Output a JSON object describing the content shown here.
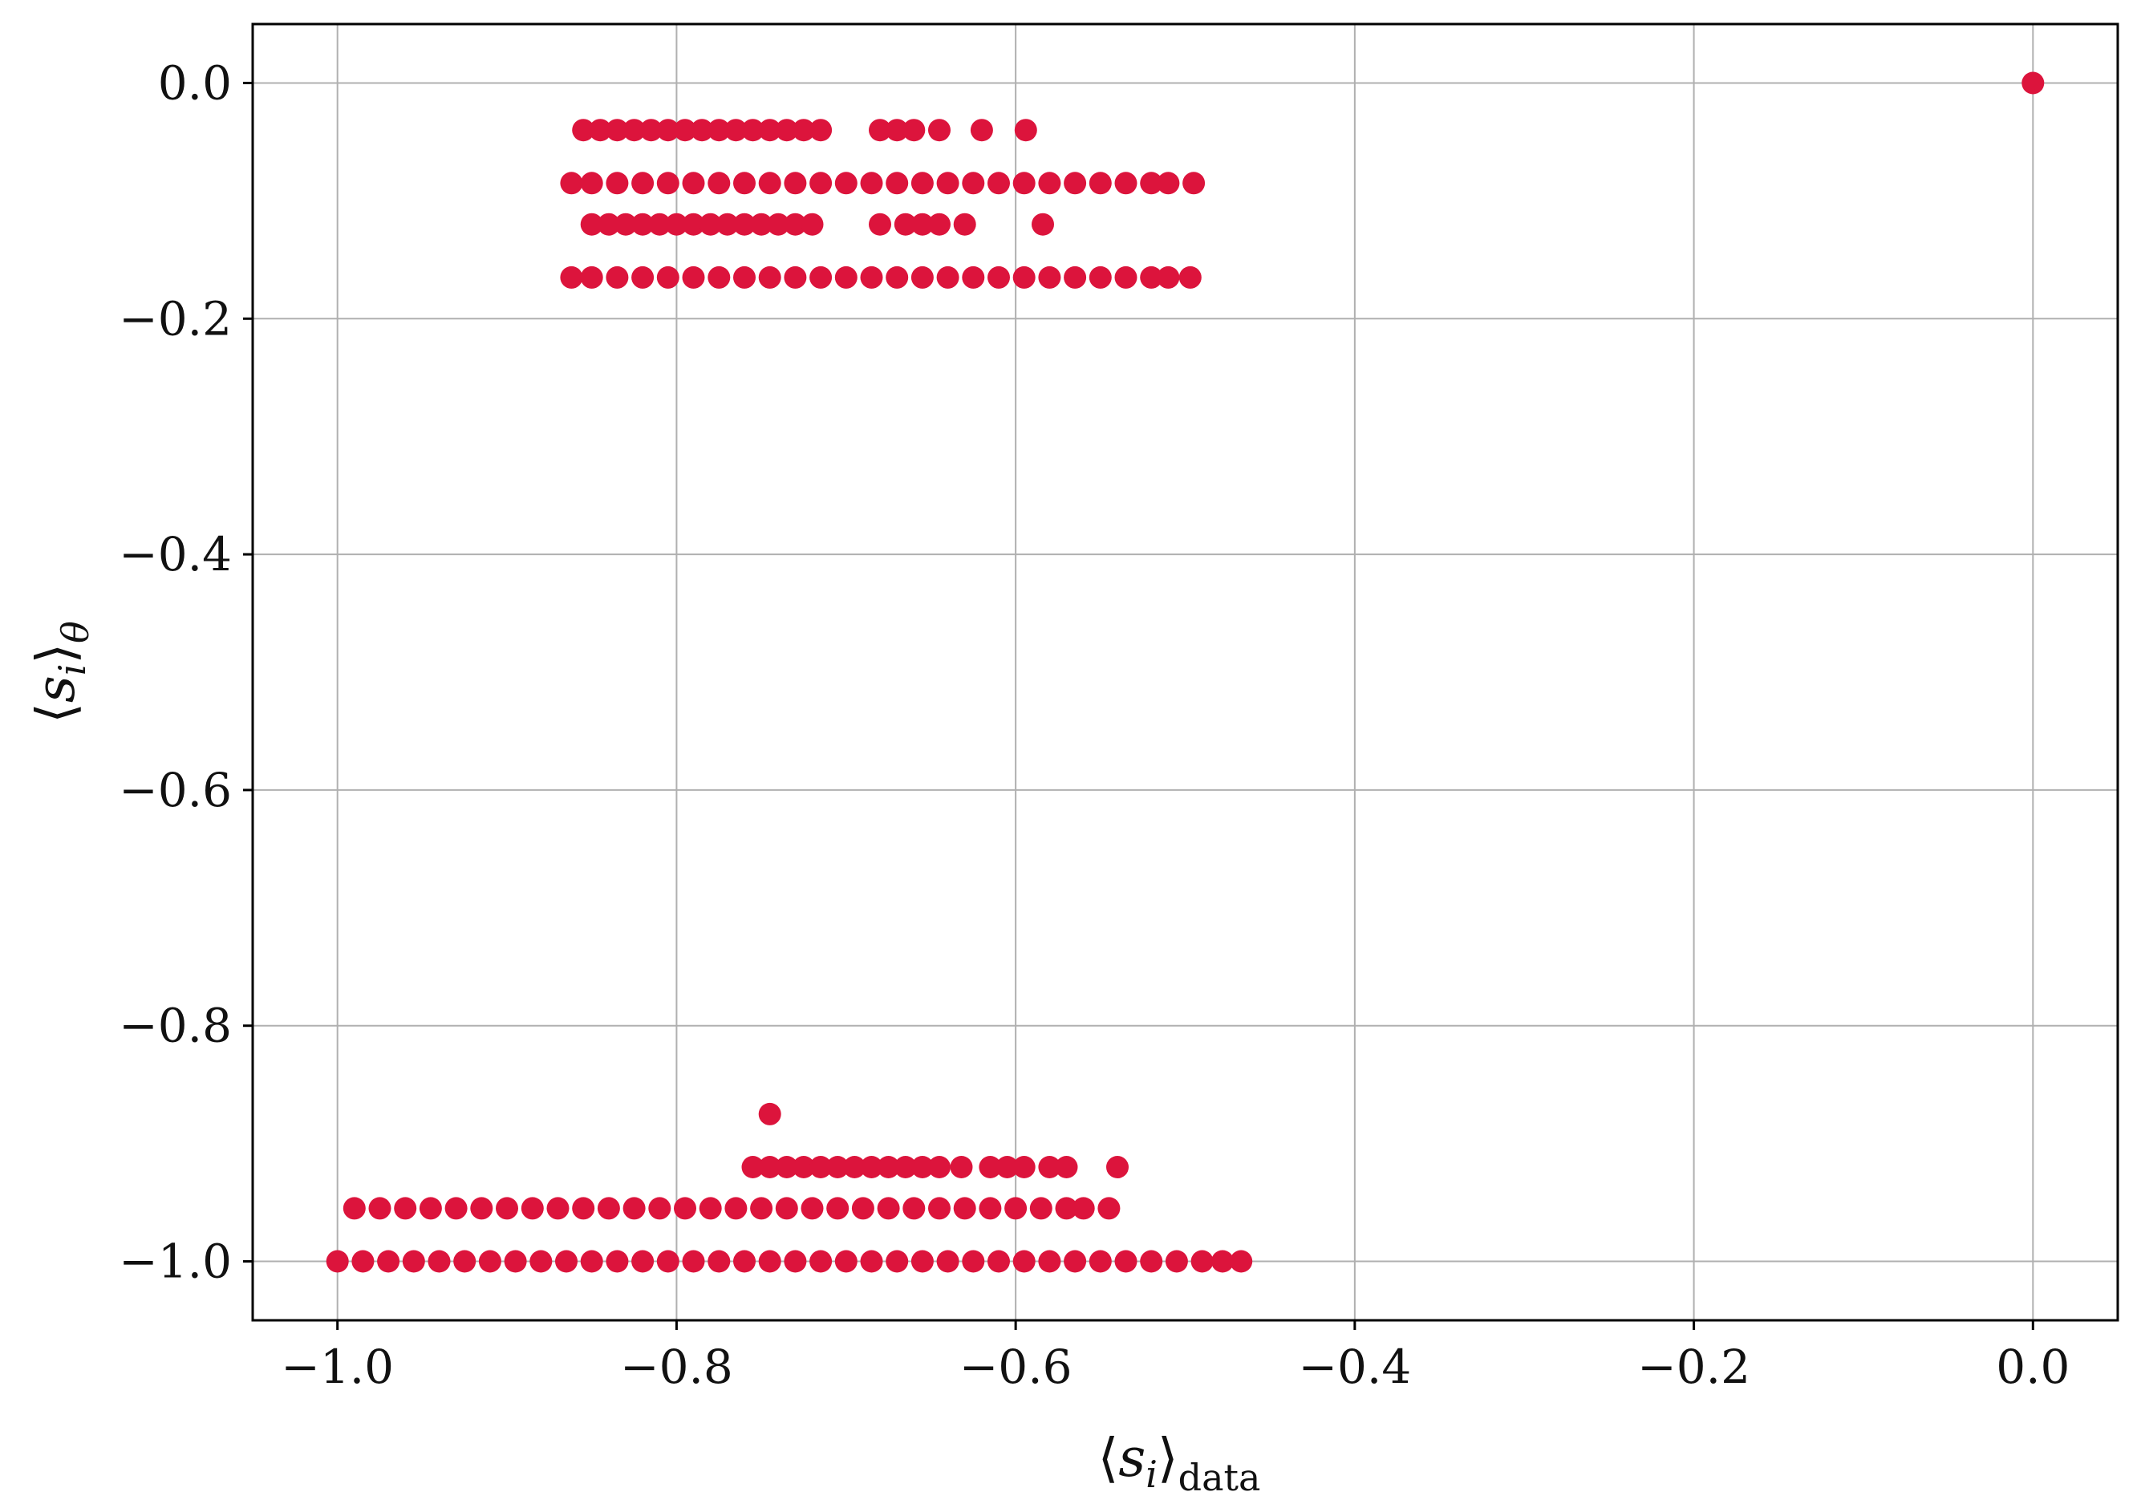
{
  "chart_data": {
    "type": "scatter",
    "xlabel_parts": {
      "open": "⟨",
      "sym": "s",
      "idx": "i",
      "close": "⟩",
      "sub": "data"
    },
    "ylabel_parts": {
      "open": "⟨",
      "sym": "s",
      "idx": "i",
      "close": "⟩",
      "sub": "θ"
    },
    "xlim": [
      -1.05,
      0.05
    ],
    "ylim": [
      -1.05,
      0.05
    ],
    "x_ticks": [
      -1.0,
      -0.8,
      -0.6,
      -0.4,
      -0.2,
      0.0
    ],
    "x_tick_labels": [
      "−1.0",
      "−0.8",
      "−0.6",
      "−0.4",
      "−0.2",
      "0.0"
    ],
    "y_ticks": [
      0.0,
      -0.2,
      -0.4,
      -0.6,
      -0.8,
      -1.0
    ],
    "y_tick_labels": [
      "0.0",
      "−0.2",
      "−0.4",
      "−0.6",
      "−0.8",
      "−1.0"
    ],
    "grid": true,
    "marker_color": "#dc143c",
    "series": [
      {
        "points": [
          [
            0.0,
            0.0
          ],
          [
            -0.855,
            -0.04
          ],
          [
            -0.845,
            -0.04
          ],
          [
            -0.835,
            -0.04
          ],
          [
            -0.825,
            -0.04
          ],
          [
            -0.815,
            -0.04
          ],
          [
            -0.805,
            -0.04
          ],
          [
            -0.795,
            -0.04
          ],
          [
            -0.785,
            -0.04
          ],
          [
            -0.775,
            -0.04
          ],
          [
            -0.765,
            -0.04
          ],
          [
            -0.755,
            -0.04
          ],
          [
            -0.745,
            -0.04
          ],
          [
            -0.735,
            -0.04
          ],
          [
            -0.725,
            -0.04
          ],
          [
            -0.715,
            -0.04
          ],
          [
            -0.68,
            -0.04
          ],
          [
            -0.67,
            -0.04
          ],
          [
            -0.66,
            -0.04
          ],
          [
            -0.645,
            -0.04
          ],
          [
            -0.62,
            -0.04
          ],
          [
            -0.594,
            -0.04
          ],
          [
            -0.862,
            -0.085
          ],
          [
            -0.85,
            -0.085
          ],
          [
            -0.835,
            -0.085
          ],
          [
            -0.82,
            -0.085
          ],
          [
            -0.805,
            -0.085
          ],
          [
            -0.79,
            -0.085
          ],
          [
            -0.775,
            -0.085
          ],
          [
            -0.76,
            -0.085
          ],
          [
            -0.745,
            -0.085
          ],
          [
            -0.73,
            -0.085
          ],
          [
            -0.715,
            -0.085
          ],
          [
            -0.7,
            -0.085
          ],
          [
            -0.685,
            -0.085
          ],
          [
            -0.67,
            -0.085
          ],
          [
            -0.655,
            -0.085
          ],
          [
            -0.64,
            -0.085
          ],
          [
            -0.625,
            -0.085
          ],
          [
            -0.61,
            -0.085
          ],
          [
            -0.595,
            -0.085
          ],
          [
            -0.58,
            -0.085
          ],
          [
            -0.565,
            -0.085
          ],
          [
            -0.55,
            -0.085
          ],
          [
            -0.535,
            -0.085
          ],
          [
            -0.52,
            -0.085
          ],
          [
            -0.51,
            -0.085
          ],
          [
            -0.495,
            -0.085
          ],
          [
            -0.85,
            -0.12
          ],
          [
            -0.84,
            -0.12
          ],
          [
            -0.83,
            -0.12
          ],
          [
            -0.82,
            -0.12
          ],
          [
            -0.81,
            -0.12
          ],
          [
            -0.8,
            -0.12
          ],
          [
            -0.79,
            -0.12
          ],
          [
            -0.78,
            -0.12
          ],
          [
            -0.77,
            -0.12
          ],
          [
            -0.76,
            -0.12
          ],
          [
            -0.75,
            -0.12
          ],
          [
            -0.74,
            -0.12
          ],
          [
            -0.73,
            -0.12
          ],
          [
            -0.72,
            -0.12
          ],
          [
            -0.68,
            -0.12
          ],
          [
            -0.665,
            -0.12
          ],
          [
            -0.655,
            -0.12
          ],
          [
            -0.645,
            -0.12
          ],
          [
            -0.63,
            -0.12
          ],
          [
            -0.584,
            -0.12
          ],
          [
            -0.862,
            -0.165
          ],
          [
            -0.85,
            -0.165
          ],
          [
            -0.835,
            -0.165
          ],
          [
            -0.82,
            -0.165
          ],
          [
            -0.805,
            -0.165
          ],
          [
            -0.79,
            -0.165
          ],
          [
            -0.775,
            -0.165
          ],
          [
            -0.76,
            -0.165
          ],
          [
            -0.745,
            -0.165
          ],
          [
            -0.73,
            -0.165
          ],
          [
            -0.715,
            -0.165
          ],
          [
            -0.7,
            -0.165
          ],
          [
            -0.685,
            -0.165
          ],
          [
            -0.67,
            -0.165
          ],
          [
            -0.655,
            -0.165
          ],
          [
            -0.64,
            -0.165
          ],
          [
            -0.625,
            -0.165
          ],
          [
            -0.61,
            -0.165
          ],
          [
            -0.595,
            -0.165
          ],
          [
            -0.58,
            -0.165
          ],
          [
            -0.565,
            -0.165
          ],
          [
            -0.55,
            -0.165
          ],
          [
            -0.535,
            -0.165
          ],
          [
            -0.52,
            -0.165
          ],
          [
            -0.51,
            -0.165
          ],
          [
            -0.497,
            -0.165
          ],
          [
            -0.745,
            -0.875
          ],
          [
            -0.755,
            -0.92
          ],
          [
            -0.745,
            -0.92
          ],
          [
            -0.735,
            -0.92
          ],
          [
            -0.725,
            -0.92
          ],
          [
            -0.715,
            -0.92
          ],
          [
            -0.705,
            -0.92
          ],
          [
            -0.695,
            -0.92
          ],
          [
            -0.685,
            -0.92
          ],
          [
            -0.675,
            -0.92
          ],
          [
            -0.665,
            -0.92
          ],
          [
            -0.655,
            -0.92
          ],
          [
            -0.645,
            -0.92
          ],
          [
            -0.632,
            -0.92
          ],
          [
            -0.615,
            -0.92
          ],
          [
            -0.605,
            -0.92
          ],
          [
            -0.595,
            -0.92
          ],
          [
            -0.58,
            -0.92
          ],
          [
            -0.57,
            -0.92
          ],
          [
            -0.54,
            -0.92
          ],
          [
            -0.99,
            -0.955
          ],
          [
            -0.975,
            -0.955
          ],
          [
            -0.96,
            -0.955
          ],
          [
            -0.945,
            -0.955
          ],
          [
            -0.93,
            -0.955
          ],
          [
            -0.915,
            -0.955
          ],
          [
            -0.9,
            -0.955
          ],
          [
            -0.885,
            -0.955
          ],
          [
            -0.87,
            -0.955
          ],
          [
            -0.855,
            -0.955
          ],
          [
            -0.84,
            -0.955
          ],
          [
            -0.825,
            -0.955
          ],
          [
            -0.81,
            -0.955
          ],
          [
            -0.795,
            -0.955
          ],
          [
            -0.78,
            -0.955
          ],
          [
            -0.765,
            -0.955
          ],
          [
            -0.75,
            -0.955
          ],
          [
            -0.735,
            -0.955
          ],
          [
            -0.72,
            -0.955
          ],
          [
            -0.705,
            -0.955
          ],
          [
            -0.69,
            -0.955
          ],
          [
            -0.675,
            -0.955
          ],
          [
            -0.66,
            -0.955
          ],
          [
            -0.645,
            -0.955
          ],
          [
            -0.63,
            -0.955
          ],
          [
            -0.615,
            -0.955
          ],
          [
            -0.6,
            -0.955
          ],
          [
            -0.585,
            -0.955
          ],
          [
            -0.57,
            -0.955
          ],
          [
            -0.56,
            -0.955
          ],
          [
            -0.545,
            -0.955
          ],
          [
            -1.0,
            -1.0
          ],
          [
            -0.985,
            -1.0
          ],
          [
            -0.97,
            -1.0
          ],
          [
            -0.955,
            -1.0
          ],
          [
            -0.94,
            -1.0
          ],
          [
            -0.925,
            -1.0
          ],
          [
            -0.91,
            -1.0
          ],
          [
            -0.895,
            -1.0
          ],
          [
            -0.88,
            -1.0
          ],
          [
            -0.865,
            -1.0
          ],
          [
            -0.85,
            -1.0
          ],
          [
            -0.835,
            -1.0
          ],
          [
            -0.82,
            -1.0
          ],
          [
            -0.805,
            -1.0
          ],
          [
            -0.79,
            -1.0
          ],
          [
            -0.775,
            -1.0
          ],
          [
            -0.76,
            -1.0
          ],
          [
            -0.745,
            -1.0
          ],
          [
            -0.73,
            -1.0
          ],
          [
            -0.715,
            -1.0
          ],
          [
            -0.7,
            -1.0
          ],
          [
            -0.685,
            -1.0
          ],
          [
            -0.67,
            -1.0
          ],
          [
            -0.655,
            -1.0
          ],
          [
            -0.64,
            -1.0
          ],
          [
            -0.625,
            -1.0
          ],
          [
            -0.61,
            -1.0
          ],
          [
            -0.595,
            -1.0
          ],
          [
            -0.58,
            -1.0
          ],
          [
            -0.565,
            -1.0
          ],
          [
            -0.55,
            -1.0
          ],
          [
            -0.535,
            -1.0
          ],
          [
            -0.52,
            -1.0
          ],
          [
            -0.505,
            -1.0
          ],
          [
            -0.49,
            -1.0
          ],
          [
            -0.478,
            -1.0
          ],
          [
            -0.467,
            -1.0
          ]
        ]
      }
    ]
  }
}
